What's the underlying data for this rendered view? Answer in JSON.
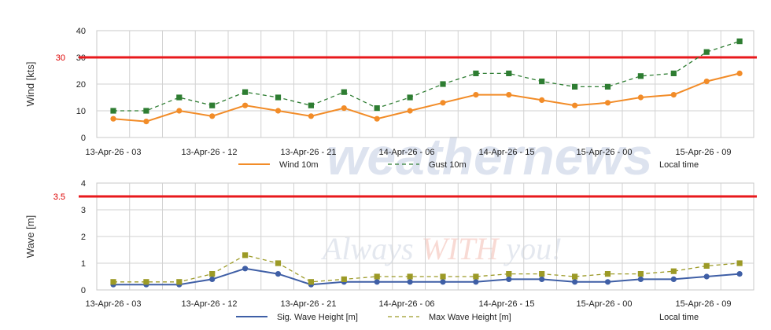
{
  "watermark": {
    "logo_text": "weathernews",
    "tagline_pre": "Always ",
    "tagline_hl": "WITH",
    "tagline_post": " you!"
  },
  "chart_data": [
    {
      "type": "line",
      "ylabel": "Wind [kts]",
      "ylim": [
        0,
        40
      ],
      "yticks": [
        "0",
        "10",
        "20",
        "30",
        "40"
      ],
      "grid": true,
      "threshold": {
        "value": 30,
        "label": "30",
        "color": "#e8191c"
      },
      "x_tick_labels": [
        "13-Apr-26 - 03",
        "13-Apr-26 - 12",
        "13-Apr-26 - 21",
        "14-Apr-26 - 06",
        "14-Apr-26 - 15",
        "15-Apr-26 - 00",
        "15-Apr-26 - 09"
      ],
      "extra_legend_text": "Local time",
      "series": [
        {
          "name": "Wind 10m",
          "color": "#f28c28",
          "style": "solid",
          "marker": "circle",
          "values": [
            7,
            6,
            10,
            8,
            12,
            10,
            8,
            11,
            7,
            10,
            13,
            16,
            16,
            14,
            12,
            13,
            15,
            16,
            21,
            24
          ]
        },
        {
          "name": "Gust 10m",
          "color": "#2e7d32",
          "style": "dashed",
          "marker": "square",
          "values": [
            10,
            10,
            15,
            12,
            17,
            15,
            12,
            17,
            11,
            15,
            20,
            24,
            24,
            21,
            19,
            19,
            23,
            24,
            32,
            36
          ]
        }
      ]
    },
    {
      "type": "line",
      "ylabel": "Wave [m]",
      "ylim": [
        0,
        4
      ],
      "yticks": [
        "0",
        "1",
        "2",
        "3",
        "4"
      ],
      "grid": true,
      "threshold": {
        "value": 3.5,
        "label": "3.5",
        "color": "#e8191c"
      },
      "x_tick_labels": [
        "13-Apr-26 - 03",
        "13-Apr-26 - 12",
        "13-Apr-26 - 21",
        "14-Apr-26 - 06",
        "14-Apr-26 - 15",
        "15-Apr-26 - 00",
        "15-Apr-26 - 09"
      ],
      "extra_legend_text": "Local time",
      "series": [
        {
          "name": "Sig. Wave Height [m]",
          "color": "#3f5fa6",
          "style": "solid",
          "marker": "circle",
          "values": [
            0.2,
            0.2,
            0.2,
            0.4,
            0.8,
            0.6,
            0.2,
            0.3,
            0.3,
            0.3,
            0.3,
            0.3,
            0.4,
            0.4,
            0.3,
            0.3,
            0.4,
            0.4,
            0.5,
            0.6
          ]
        },
        {
          "name": "Max Wave Height [m]",
          "color": "#9c9a26",
          "style": "dashed",
          "marker": "square",
          "values": [
            0.3,
            0.3,
            0.3,
            0.6,
            1.3,
            1.0,
            0.3,
            0.4,
            0.5,
            0.5,
            0.5,
            0.5,
            0.6,
            0.6,
            0.5,
            0.6,
            0.6,
            0.7,
            0.9,
            1.0
          ]
        }
      ]
    }
  ]
}
